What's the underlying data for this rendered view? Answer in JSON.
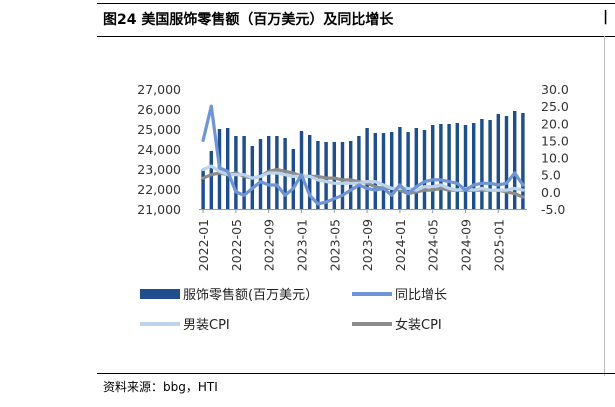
{
  "header": {
    "title": "图24 美国服饰零售额（百万美元）及同比增长",
    "source": "资料来源：bbg，HTI"
  },
  "chart_data": {
    "type": "bar",
    "title": "图24 美国服饰零售额（百万美元）及同比增长",
    "left_axis": {
      "ylim": [
        21000,
        27000
      ],
      "ticks": [
        21000,
        22000,
        23000,
        24000,
        25000,
        26000,
        27000
      ],
      "tick_labels": [
        "21,000",
        "22,000",
        "23,000",
        "24,000",
        "25,000",
        "26,000",
        "27,000"
      ]
    },
    "right_axis": {
      "ylim": [
        -5,
        30
      ],
      "ticks": [
        -5,
        0,
        5,
        10,
        15,
        20,
        25,
        30
      ],
      "tick_labels": [
        "-5.0",
        "0.0",
        "5.0",
        "10.0",
        "15.0",
        "20.0",
        "25.0",
        "30.0"
      ]
    },
    "x_tick_labels": [
      "2022-01",
      "2022-05",
      "2022-09",
      "2023-01",
      "2023-05",
      "2023-09",
      "2024-01",
      "2024-05",
      "2024-09",
      "2025-01"
    ],
    "months": [
      "2022-01",
      "2022-02",
      "2022-03",
      "2022-04",
      "2022-05",
      "2022-06",
      "2022-07",
      "2022-08",
      "2022-09",
      "2022-10",
      "2022-11",
      "2022-12",
      "2023-01",
      "2023-02",
      "2023-03",
      "2023-04",
      "2023-05",
      "2023-06",
      "2023-07",
      "2023-08",
      "2023-09",
      "2023-10",
      "2023-11",
      "2023-12",
      "2024-01",
      "2024-02",
      "2024-03",
      "2024-04",
      "2024-05",
      "2024-06",
      "2024-07",
      "2024-08",
      "2024-09",
      "2024-10",
      "2024-11",
      "2024-12",
      "2025-01",
      "2025-02",
      "2025-03",
      "2025-04"
    ],
    "legend_position": "bottom",
    "series": [
      {
        "name": "服饰零售额(百万美元）",
        "type": "bar",
        "axis": "left",
        "color": "#1f4e8c",
        "values": [
          23000,
          23900,
          25000,
          25050,
          24650,
          24650,
          24150,
          24500,
          24650,
          24650,
          24550,
          24000,
          24900,
          24700,
          24400,
          24350,
          24350,
          24350,
          24400,
          24650,
          25050,
          24800,
          24800,
          24850,
          25100,
          24850,
          25050,
          24950,
          25200,
          25250,
          25250,
          25300,
          25200,
          25300,
          25500,
          25450,
          25750,
          25650,
          25900,
          25800
        ]
      },
      {
        "name": "同比增长",
        "type": "line",
        "axis": "right",
        "color": "#6f95d5",
        "values": [
          15.0,
          25.0,
          7.0,
          6.0,
          0.0,
          -1.0,
          1.0,
          3.0,
          2.0,
          2.0,
          -1.0,
          1.0,
          5.0,
          -1.0,
          -3.5,
          -3.0,
          -2.0,
          -1.0,
          0.5,
          2.0,
          1.0,
          0.5,
          1.0,
          -1.0,
          2.0,
          -0.5,
          1.5,
          3.0,
          3.5,
          3.5,
          3.0,
          2.5,
          0.5,
          2.0,
          2.5,
          2.5,
          2.0,
          2.5,
          5.5,
          2.0
        ]
      },
      {
        "name": "男装CPI",
        "type": "line",
        "axis": "right",
        "color": "#bcd3ec",
        "values": [
          6.5,
          7.5,
          6.0,
          5.0,
          5.0,
          5.0,
          4.0,
          4.5,
          5.5,
          5.5,
          5.0,
          4.5,
          4.5,
          4.5,
          3.5,
          3.0,
          2.5,
          2.5,
          2.5,
          2.5,
          3.0,
          3.0,
          2.0,
          1.0,
          1.0,
          1.0,
          0.5,
          1.5,
          1.5,
          2.0,
          1.0,
          0.5,
          1.0,
          0.5,
          1.0,
          0.5,
          0.5,
          0.5,
          1.0,
          0.5
        ]
      },
      {
        "name": "女装CPI",
        "type": "line",
        "axis": "right",
        "color": "#8c8c8c",
        "values": [
          4.0,
          5.0,
          5.5,
          5.0,
          5.5,
          4.5,
          4.0,
          4.5,
          6.0,
          6.5,
          6.0,
          5.5,
          4.5,
          4.5,
          4.5,
          4.0,
          4.0,
          3.5,
          3.5,
          3.0,
          2.5,
          1.5,
          1.0,
          1.0,
          0.5,
          -0.5,
          0.0,
          0.5,
          0.5,
          1.0,
          0.5,
          0.5,
          0.5,
          0.5,
          0.5,
          0.5,
          0.5,
          0.0,
          -0.5,
          -1.5
        ]
      }
    ]
  }
}
